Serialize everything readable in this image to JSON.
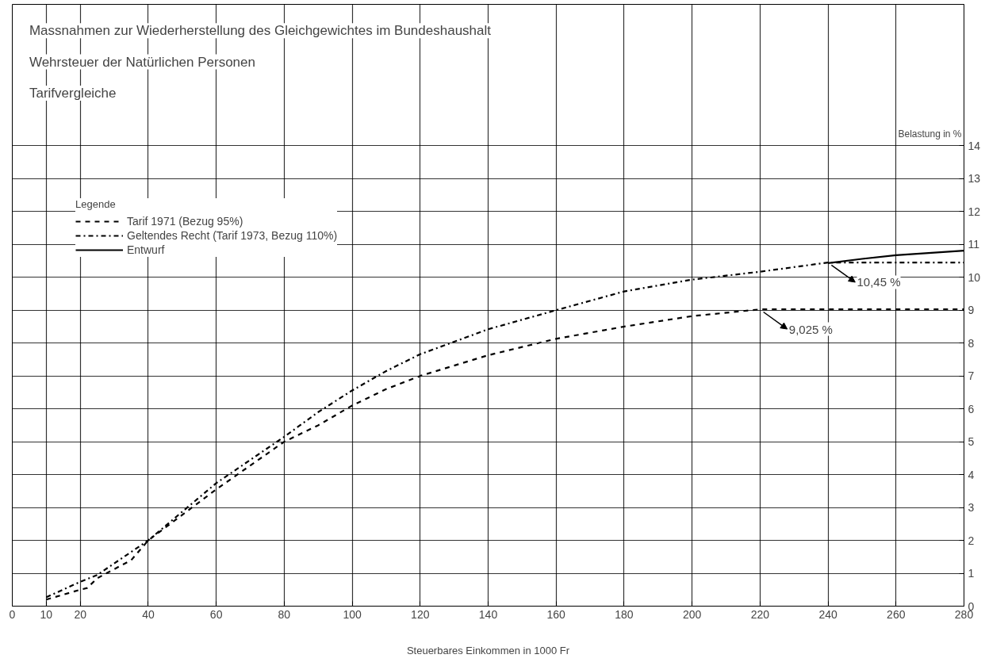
{
  "chart_data": {
    "type": "line",
    "title": "Massnahmen zur Wiederherstellung des Gleichgewichtes im Bundeshaushalt",
    "subtitle": "Wehrsteuer der Natürlichen Personen",
    "xlabel": "Steuerbares Einkommen in 1000 Fr",
    "ylabel": "Belastung in %",
    "legend_title": "Legende",
    "annotations": [
      "Tarifvergleiche",
      {
        "text": "10,45 %",
        "x": 240,
        "y": 10.45
      },
      {
        "text": "9,025 %",
        "x": 220,
        "y": 9.025
      }
    ],
    "series": [
      {
        "name": "Tarif 1971 (Bezug 95%)",
        "color": "#000000",
        "line_style": "dashed",
        "x": [
          10,
          20,
          22,
          25,
          35,
          40,
          60,
          80,
          90,
          100,
          110,
          120,
          140,
          160,
          180,
          200,
          220,
          240,
          260,
          280
        ],
        "values": [
          0.2,
          0.5,
          0.55,
          0.85,
          1.4,
          2.0,
          3.55,
          5.0,
          5.5,
          6.1,
          6.6,
          7.0,
          7.63,
          8.13,
          8.5,
          8.82,
          9.025,
          9.025,
          9.025,
          9.025
        ]
      },
      {
        "name": "Geltendes Recht (Tarif 1973, Bezug 110%)",
        "color": "#000000",
        "line_style": "dashdot",
        "x": [
          10,
          20,
          25,
          40,
          60,
          80,
          90,
          100,
          110,
          120,
          140,
          160,
          180,
          200,
          220,
          240,
          260,
          280
        ],
        "values": [
          0.27,
          0.74,
          0.95,
          2.0,
          3.74,
          5.15,
          5.9,
          6.56,
          7.15,
          7.66,
          8.42,
          9.0,
          9.57,
          9.93,
          10.17,
          10.45,
          10.45,
          10.45
        ]
      },
      {
        "name": "Entwurf",
        "color": "#000000",
        "line_style": "solid",
        "x": [
          240,
          250,
          260,
          280
        ],
        "values": [
          10.43,
          10.56,
          10.67,
          10.81
        ]
      }
    ],
    "xlim": [
      0,
      280
    ],
    "ylim": [
      0,
      18.3
    ],
    "xticks": [
      0,
      10,
      20,
      40,
      60,
      80,
      100,
      120,
      140,
      160,
      180,
      200,
      220,
      240,
      260,
      280
    ],
    "yticks": [
      0,
      1,
      2,
      3,
      4,
      5,
      6,
      7,
      8,
      9,
      10,
      11,
      12,
      13,
      14
    ],
    "grid": true,
    "legend": "top left"
  }
}
